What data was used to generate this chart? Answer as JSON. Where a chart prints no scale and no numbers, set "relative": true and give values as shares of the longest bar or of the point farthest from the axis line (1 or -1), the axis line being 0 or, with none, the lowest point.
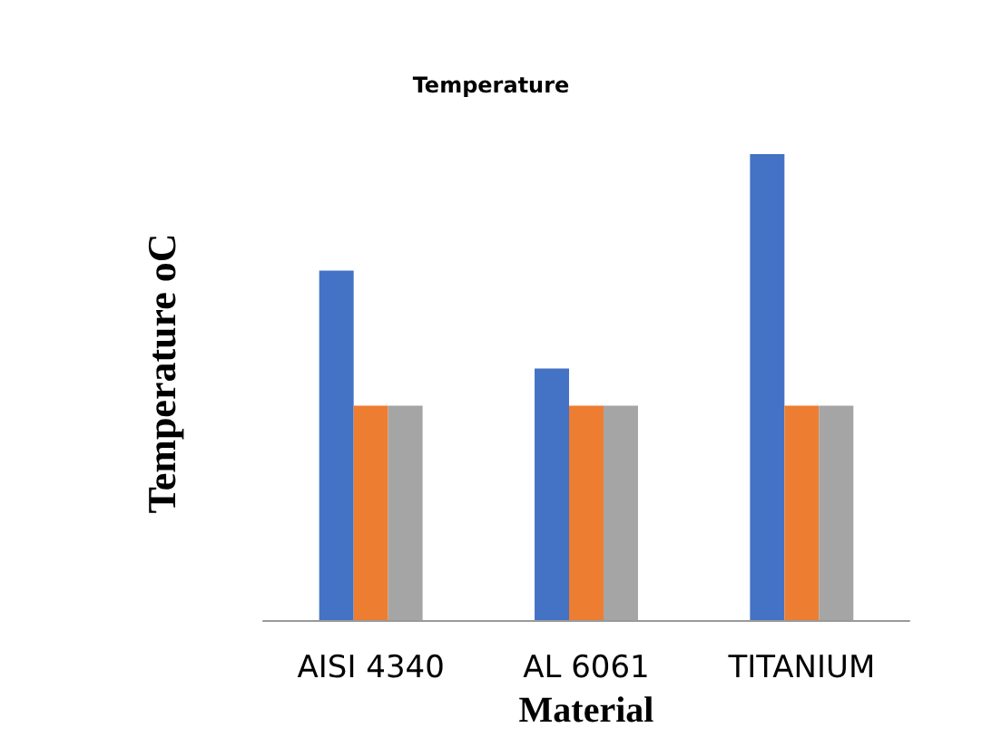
{
  "chart_data": {
    "type": "bar",
    "title": "Temperature",
    "xlabel": "Material",
    "ylabel": "Temperature oC",
    "categories": [
      "AISI 4340",
      "AL 6061",
      "TITANIUM"
    ],
    "relative": true,
    "series": [
      {
        "color": "#4472c4",
        "values": [
          0.75,
          0.54,
          1
        ]
      },
      {
        "color": "#ed7d31",
        "values": [
          0.46,
          0.46,
          0.46
        ]
      },
      {
        "color": "#a5a5a5",
        "values": [
          0.46,
          0.46,
          0.46
        ]
      }
    ]
  }
}
